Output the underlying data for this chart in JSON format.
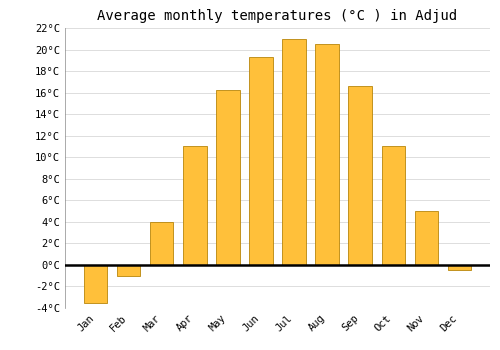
{
  "title": "Average monthly temperatures (°C ) in Adjud",
  "months": [
    "Jan",
    "Feb",
    "Mar",
    "Apr",
    "May",
    "Jun",
    "Jul",
    "Aug",
    "Sep",
    "Oct",
    "Nov",
    "Dec"
  ],
  "values": [
    -3.5,
    -1.0,
    4.0,
    11.0,
    16.2,
    19.3,
    21.0,
    20.5,
    16.6,
    11.0,
    5.0,
    -0.5
  ],
  "bar_color": "#FFC03A",
  "bar_edge_color": "#B8860B",
  "background_color": "#ffffff",
  "grid_color": "#dddddd",
  "ylim": [
    -4,
    22
  ],
  "yticks": [
    -4,
    -2,
    0,
    2,
    4,
    6,
    8,
    10,
    12,
    14,
    16,
    18,
    20,
    22
  ],
  "zero_line_color": "#000000",
  "title_fontsize": 10,
  "tick_fontsize": 7.5,
  "font_family": "monospace"
}
